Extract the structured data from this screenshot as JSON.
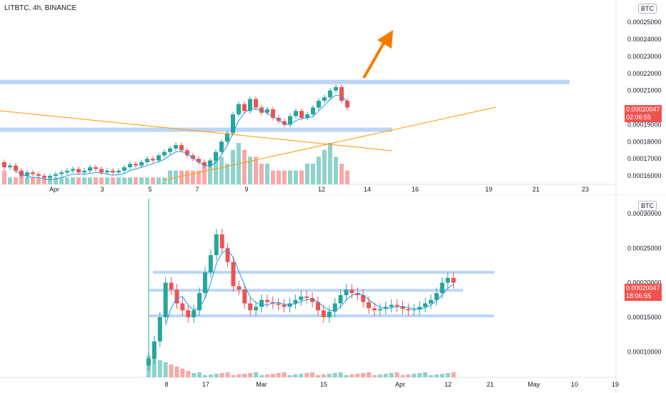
{
  "top_chart": {
    "legend": "LITBTC, 4h, BINANCE",
    "currency_badge": "BTC",
    "last_price": "0.00020047",
    "countdown": "02:06:55",
    "y_ticks": [
      "0.00025000",
      "0.00024000",
      "0.00023000",
      "0.00022000",
      "0.00021000",
      "0.00019000",
      "0.00018000",
      "0.00017000",
      "0.00016000"
    ],
    "x_ticks": [
      "Apr",
      "3",
      "5",
      "7",
      "9",
      "12",
      "14",
      "16",
      "19",
      "21",
      "23"
    ]
  },
  "bottom_chart": {
    "currency_badge": "BTC",
    "last_price": "0.00020047",
    "countdown": "18:06:55",
    "y_ticks": [
      "0.00030000",
      "0.00025000",
      "0.00020000",
      "0.00015000",
      "0.00010000"
    ],
    "x_ticks": [
      "8",
      "17",
      "Mar",
      "15",
      "Apr",
      "12",
      "21",
      "May",
      "10",
      "19"
    ]
  },
  "colors": {
    "up": "#26a69a",
    "down": "#ef5350",
    "up_vol": "#8fd3cb",
    "down_vol": "#f7a9a7",
    "zone": "#bbd6f7",
    "ma": "#2196f3",
    "trend": "#ff9800",
    "arrow": "#f57c00"
  },
  "chart_data": [
    {
      "type": "candlestick",
      "title": "LITBTC, 4h, BINANCE",
      "ylim": [
        0.000155,
        0.000258
      ],
      "open": [
        0.000168,
        0.000165,
        0.000166,
        0.000163,
        0.00016,
        0.000162,
        0.000161,
        0.00016,
        0.000159,
        0.00016,
        0.000161,
        0.000162,
        0.000163,
        0.000164,
        0.000162,
        0.000163,
        0.000165,
        0.000164,
        0.000162,
        0.000163,
        0.000162,
        0.000163,
        0.000165,
        0.000167,
        0.000166,
        0.000168,
        0.00017,
        0.000169,
        0.000172,
        0.000174,
        0.000176,
        0.000178,
        0.000175,
        0.000172,
        0.00017,
        0.000168,
        0.000166,
        0.000169,
        0.000174,
        0.00018,
        0.000185,
        0.000196,
        0.000202,
        0.000198,
        0.000205,
        0.0002,
        0.000197,
        0.000199,
        0.000194,
        0.000192,
        0.00019,
        0.000195,
        0.000198,
        0.000194,
        0.000196,
        0.0002,
        0.000204,
        0.000206,
        0.00021,
        0.000212,
        0.000204
      ],
      "close": [
        0.000165,
        0.000166,
        0.000163,
        0.00016,
        0.000162,
        0.000161,
        0.00016,
        0.000159,
        0.00016,
        0.000161,
        0.000162,
        0.000163,
        0.000164,
        0.000162,
        0.000163,
        0.000165,
        0.000164,
        0.000162,
        0.000163,
        0.000162,
        0.000163,
        0.000165,
        0.000167,
        0.000166,
        0.000168,
        0.00017,
        0.000169,
        0.000172,
        0.000174,
        0.000176,
        0.000178,
        0.000175,
        0.000172,
        0.00017,
        0.000168,
        0.000166,
        0.000169,
        0.000174,
        0.00018,
        0.000185,
        0.000196,
        0.000202,
        0.000198,
        0.000205,
        0.0002,
        0.000197,
        0.000199,
        0.000194,
        0.000192,
        0.00019,
        0.000195,
        0.000198,
        0.000194,
        0.000196,
        0.0002,
        0.000204,
        0.000206,
        0.00021,
        0.000212,
        0.000204,
        0.0002
      ],
      "volume": [
        2,
        1,
        1,
        2,
        1,
        1,
        1,
        1,
        1,
        1,
        1,
        1,
        1,
        1,
        1,
        1,
        1,
        1,
        1,
        1,
        1,
        1,
        1,
        1,
        1,
        1,
        1,
        1,
        1,
        2,
        2,
        2,
        2,
        2,
        2,
        3,
        3,
        4,
        4,
        3,
        5,
        6,
        5,
        4,
        4,
        3,
        3,
        2,
        2,
        2,
        2,
        2,
        2,
        3,
        3,
        4,
        5,
        6,
        4,
        3,
        2
      ],
      "horizontal_zones": [
        0.000215,
        0.000187
      ],
      "ma_period_note": ""
    },
    {
      "type": "candlestick",
      "ylim": [
        6.3e-05,
        0.000328
      ],
      "open": [
        8e-05,
        9e-05,
        0.000115,
        0.00015,
        0.0002,
        0.00019,
        0.00017,
        0.00016,
        0.00015,
        0.00016,
        0.000185,
        0.000215,
        0.00024,
        0.00027,
        0.00025,
        0.00023,
        0.000195,
        0.00019,
        0.00017,
        0.00016,
        0.000165,
        0.000175,
        0.000172,
        0.00017,
        0.000168,
        0.000165,
        0.00017,
        0.000175,
        0.00018,
        0.000178,
        0.000172,
        0.00016,
        0.00015,
        0.000158,
        0.00017,
        0.000182,
        0.00019,
        0.000185,
        0.000182,
        0.000172,
        0.000163,
        0.00016,
        0.000162,
        0.000165,
        0.000168,
        0.000166,
        0.000162,
        0.00016,
        0.000161,
        0.000165,
        0.00017,
        0.000175,
        0.000185,
        0.0002,
        0.000207
      ],
      "close": [
        9e-05,
        0.000115,
        0.00015,
        0.0002,
        0.00019,
        0.00017,
        0.00016,
        0.00015,
        0.00016,
        0.000185,
        0.000215,
        0.00024,
        0.00027,
        0.00025,
        0.00023,
        0.000195,
        0.00019,
        0.00017,
        0.00016,
        0.000165,
        0.000175,
        0.000172,
        0.00017,
        0.000168,
        0.000165,
        0.00017,
        0.000175,
        0.00018,
        0.000178,
        0.000172,
        0.00016,
        0.00015,
        0.000158,
        0.00017,
        0.000182,
        0.00019,
        0.000185,
        0.000182,
        0.000172,
        0.000163,
        0.00016,
        0.000162,
        0.000165,
        0.000168,
        0.000166,
        0.000162,
        0.00016,
        0.000161,
        0.000165,
        0.00017,
        0.000175,
        0.000185,
        0.0002,
        0.000207,
        0.0002
      ],
      "horizontal_zones": [
        0.000215,
        0.000189,
        0.000152
      ]
    }
  ]
}
